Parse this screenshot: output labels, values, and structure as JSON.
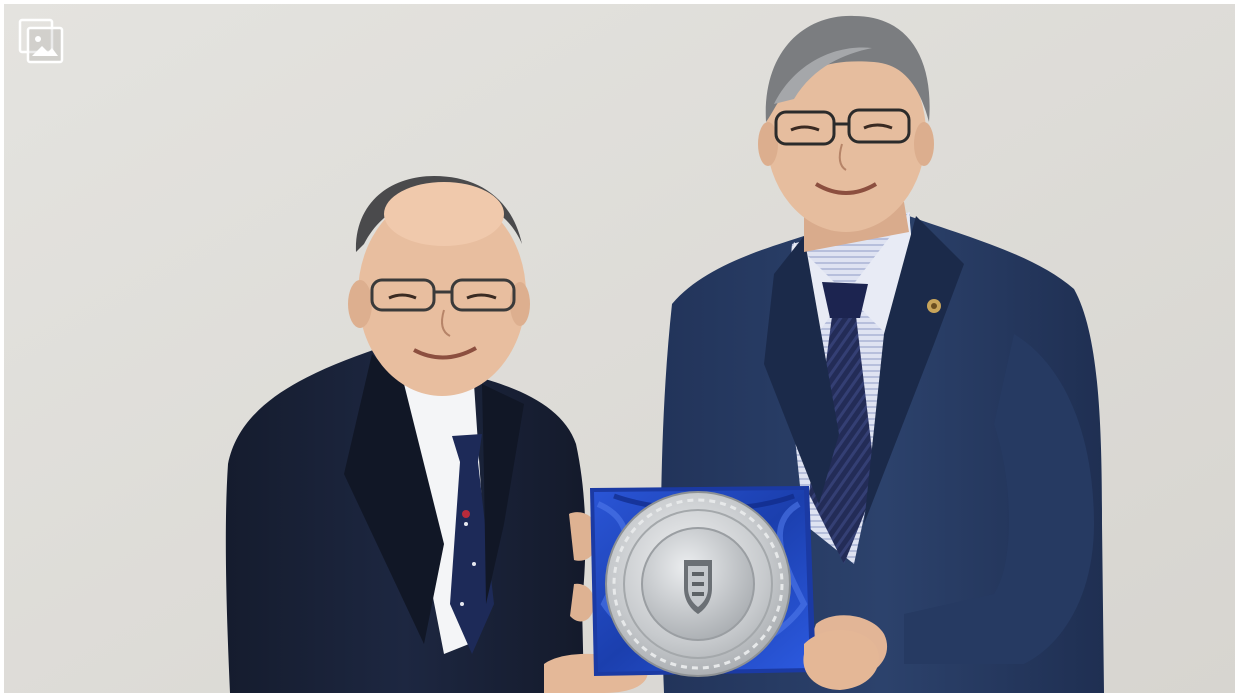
{
  "photo": {
    "description_icon": "image-gallery-icon",
    "colors": {
      "wall": "#dedcd8",
      "suit_dark": "#1a2236",
      "suit_blue": "#2a3d63",
      "tie_navy": "#1f2950",
      "box_blue": "#1e42b4",
      "plate_silver": "#c9ccd0",
      "skin": "#e7c1a4"
    }
  }
}
